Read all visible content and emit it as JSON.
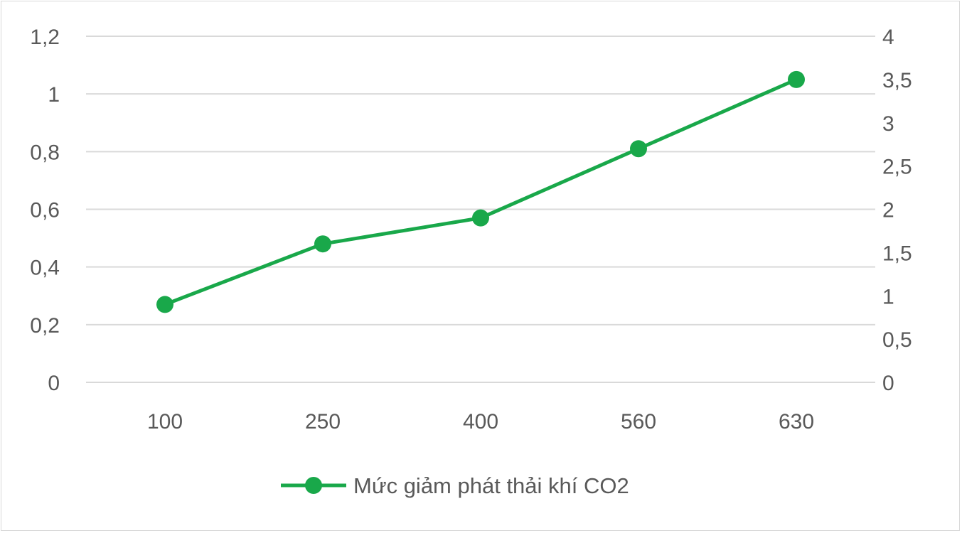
{
  "chart_data": {
    "type": "line",
    "categories": [
      "100",
      "250",
      "400",
      "560",
      "630"
    ],
    "series": [
      {
        "name": "Mức giảm phát thải khí CO2",
        "values": [
          0.27,
          0.48,
          0.57,
          0.81,
          1.05
        ],
        "color": "#19a84a",
        "axis": "left"
      }
    ],
    "y_left": {
      "range": [
        0,
        1.2
      ],
      "ticks": [
        0,
        0.2,
        0.4,
        0.6,
        0.8,
        1,
        1.2
      ],
      "tick_labels": [
        "0",
        "0,2",
        "0,4",
        "0,6",
        "0,8",
        "1",
        "1,2"
      ]
    },
    "y_right": {
      "range": [
        0,
        4
      ],
      "ticks": [
        0,
        0.5,
        1,
        1.5,
        2,
        2.5,
        3,
        3.5,
        4
      ],
      "tick_labels": [
        "0",
        "0,5",
        "1",
        "1,5",
        "2",
        "2,5",
        "3",
        "3,5",
        "4"
      ]
    },
    "grid": true,
    "gridline_color": "#d9d9d9",
    "legend": {
      "position": "bottom",
      "label": "Mức giảm phát thải khí CO2"
    }
  }
}
